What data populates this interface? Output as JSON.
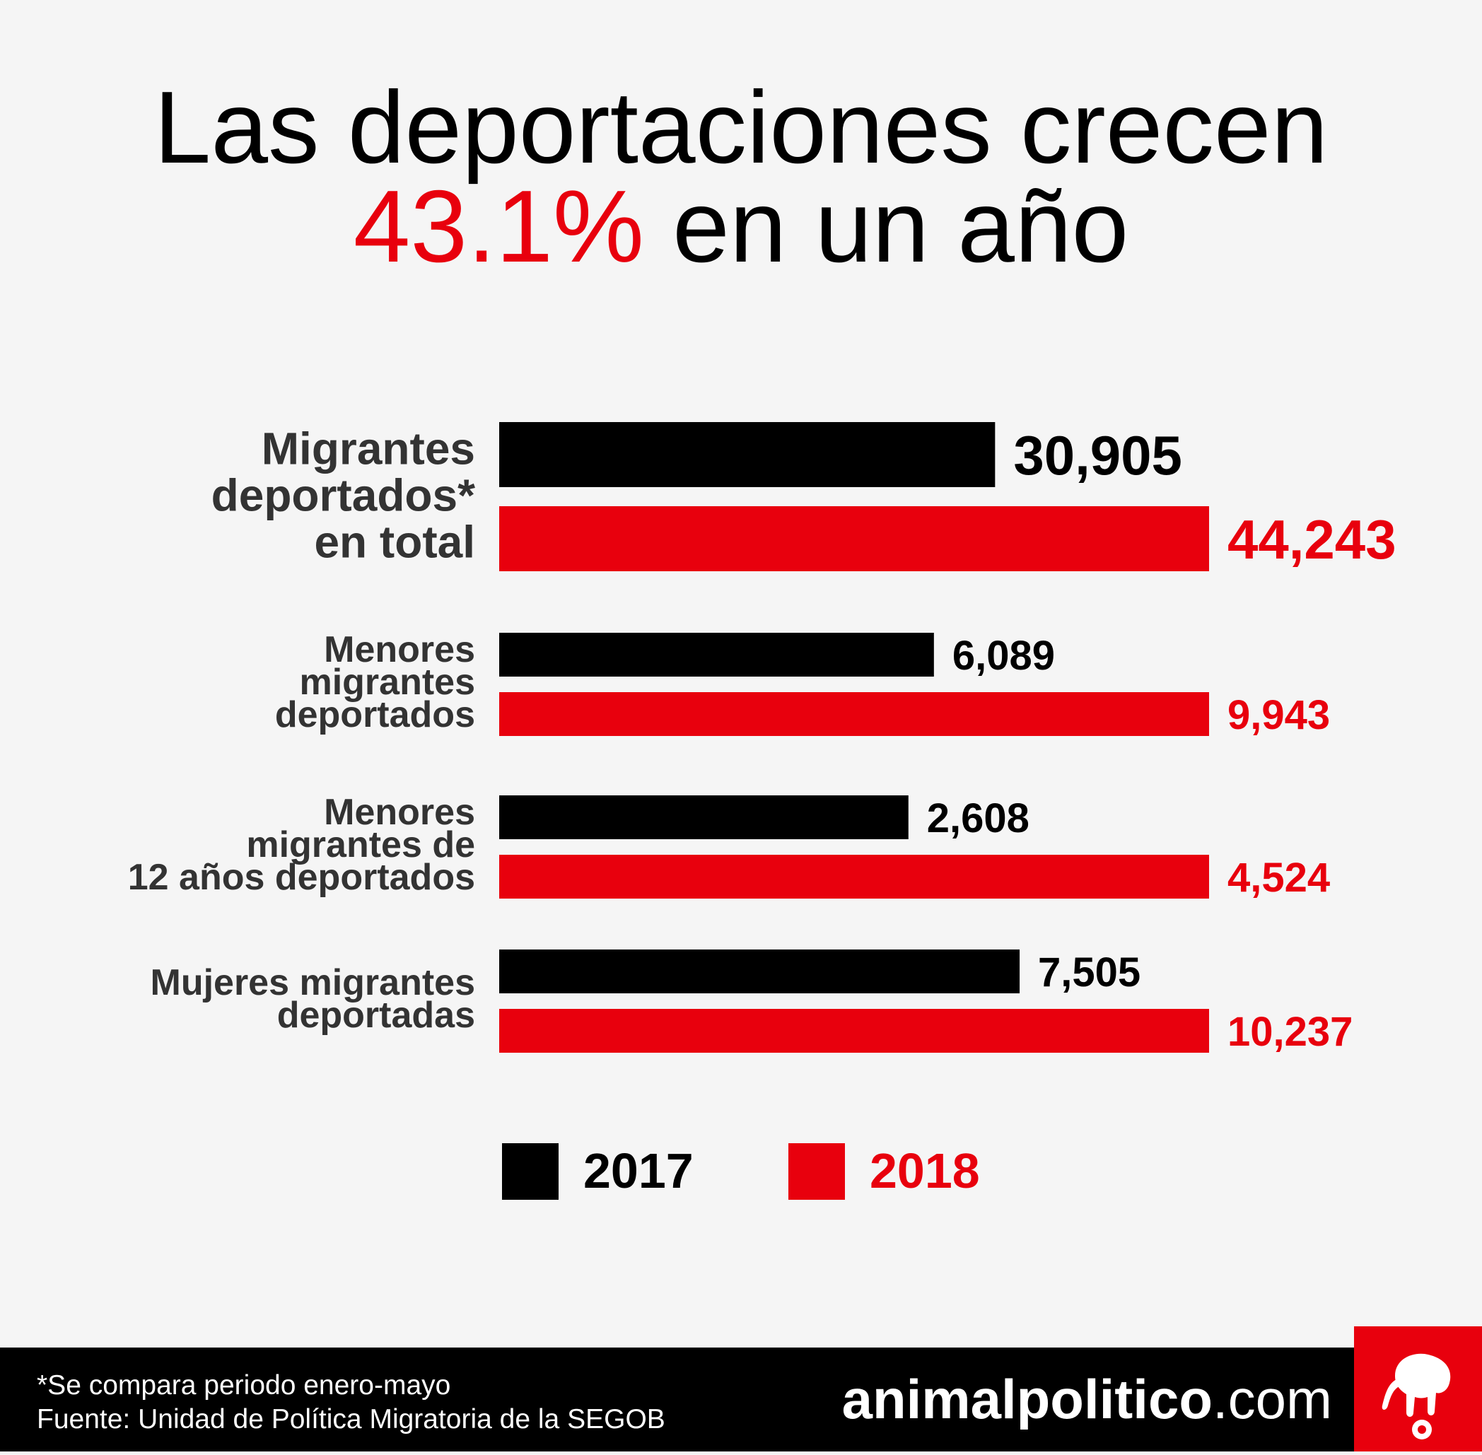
{
  "title": {
    "line1": "Las deportaciones crecen",
    "highlight": "43.1%",
    "line2_rest": " en un año"
  },
  "chart_data": {
    "type": "bar",
    "orientation": "horizontal",
    "categories": [
      "Migrantes deportados* en total",
      "Menores migrantes deportados",
      "Menores migrantes de 12 años deportados",
      "Mujeres migrantes deportadas"
    ],
    "category_lines": [
      [
        "Migrantes",
        "deportados*",
        "en total"
      ],
      [
        "Menores",
        "migrantes",
        "deportados"
      ],
      [
        "Menores",
        "migrantes de",
        "12 años deportados"
      ],
      [
        "Mujeres migrantes",
        "deportadas"
      ]
    ],
    "series": [
      {
        "name": "2017",
        "values": [
          30905,
          6089,
          2608,
          7505
        ],
        "labels": [
          "30,905",
          "6,089",
          "2,608",
          "7,505"
        ],
        "color": "#000000"
      },
      {
        "name": "2018",
        "values": [
          44243,
          9943,
          4524,
          10237
        ],
        "labels": [
          "44,243",
          "9,943",
          "4,524",
          "10,237"
        ],
        "color": "#e8000d"
      }
    ],
    "legend": {
      "items": [
        "2017",
        "2018"
      ],
      "placement": "bottom"
    }
  },
  "footer": {
    "note": "*Se compara periodo enero-mayo",
    "source": "Fuente: Unidad de Política Migratoria de la SEGOB",
    "brand_bold": "animalpolitico",
    "brand_tld": ".com"
  },
  "colors": {
    "accent": "#e8000d",
    "dark": "#000000",
    "label": "#333333",
    "background": "#f5f5f5"
  },
  "logo_icon": "elephant-icon"
}
